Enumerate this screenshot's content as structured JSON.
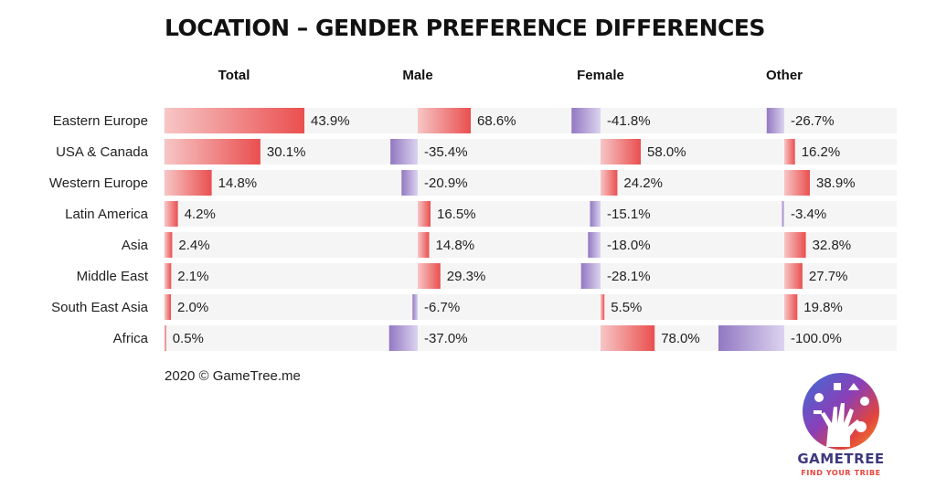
{
  "title": "LOCATION – GENDER PREFERENCE DIFFERENCES",
  "footer": "2020 © GameTree.me",
  "logo": {
    "name": "GAMETREE",
    "tagline": "FIND YOUR TRIBE"
  },
  "colors": {
    "positive_dark": "#ea4f4f",
    "positive_light": "#f7c6c6",
    "negative_dark": "#9278c2",
    "negative_light": "#dcd3ef",
    "row_background": "#f5f5f6",
    "text": "#222222"
  },
  "chart_data": {
    "type": "bar",
    "categories": [
      "Eastern Europe",
      "USA & Canada",
      "Western Europe",
      "Latin America",
      "Asia",
      "Middle East",
      "South East Asia",
      "Africa"
    ],
    "series": [
      {
        "name": "Total",
        "values": [
          43.9,
          30.1,
          14.8,
          4.2,
          2.4,
          2.1,
          2.0,
          0.5
        ],
        "labels": [
          "43.9%",
          "30.1%",
          "14.8%",
          "4.2%",
          "2.4%",
          "2.1%",
          "2.0%",
          "0.5%"
        ]
      },
      {
        "name": "Male",
        "values": [
          68.6,
          -35.4,
          -20.9,
          16.5,
          14.8,
          29.3,
          -6.7,
          -37.0
        ],
        "labels": [
          "68.6%",
          "-35.4%",
          "-20.9%",
          "16.5%",
          "14.8%",
          "29.3%",
          "-6.7%",
          "-37.0%"
        ]
      },
      {
        "name": "Female",
        "values": [
          -41.8,
          58.0,
          24.2,
          -15.1,
          -18.0,
          -28.1,
          5.5,
          78.0
        ],
        "labels": [
          "-41.8%",
          "58.0%",
          "24.2%",
          "-15.1%",
          "-18.0%",
          "-28.1%",
          "5.5%",
          "78.0%"
        ]
      },
      {
        "name": "Other",
        "values": [
          -26.7,
          16.2,
          38.9,
          -3.4,
          32.8,
          27.7,
          19.8,
          -100.0
        ],
        "labels": [
          "-26.7%",
          "16.2%",
          "38.9%",
          "-3.4%",
          "32.8%",
          "27.7%",
          "19.8%",
          "-100.0%"
        ]
      }
    ],
    "unit": "%",
    "grid": false,
    "legend": "none"
  }
}
